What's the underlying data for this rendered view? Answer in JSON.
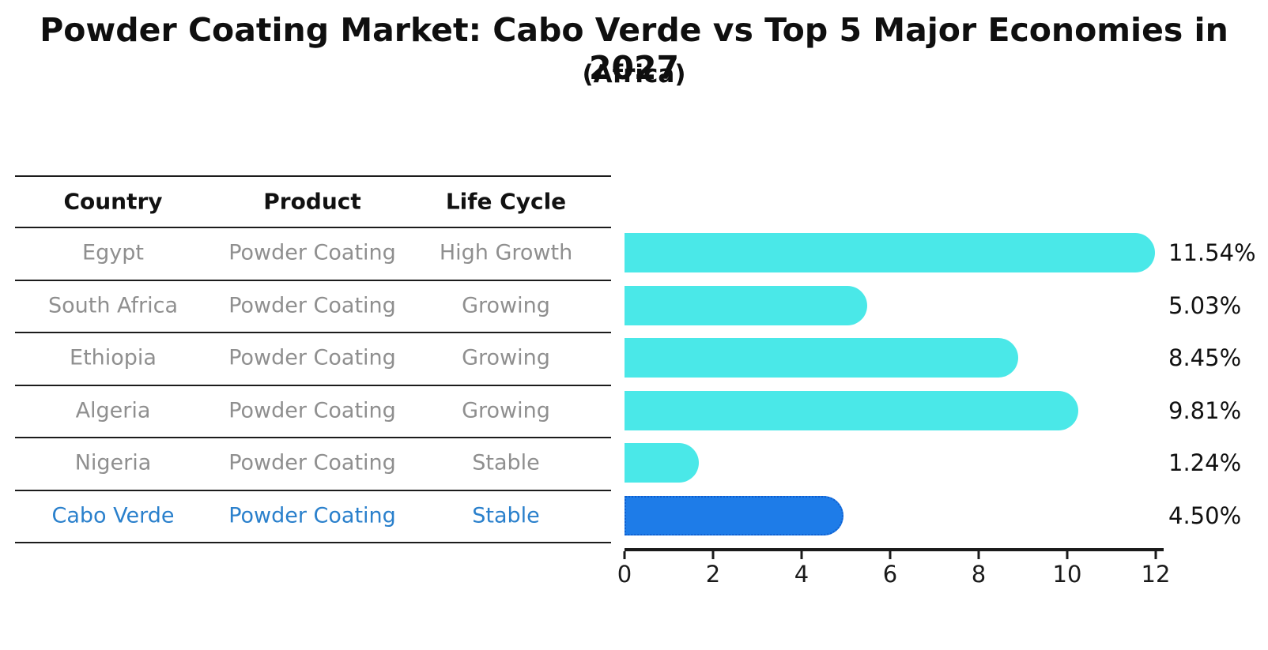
{
  "title": "Powder Coating Market: Cabo Verde vs Top 5 Major Economies in 2027",
  "subtitle": "(Africa)",
  "table": {
    "headers": [
      "Country",
      "Product",
      "Life Cycle"
    ],
    "rows": [
      {
        "country": "Egypt",
        "product": "Powder Coating",
        "life_cycle": "High Growth",
        "highlight": false
      },
      {
        "country": "South Africa",
        "product": "Powder Coating",
        "life_cycle": "Growing",
        "highlight": false
      },
      {
        "country": "Ethiopia",
        "product": "Powder Coating",
        "life_cycle": "Growing",
        "highlight": false
      },
      {
        "country": "Algeria",
        "product": "Powder Coating",
        "life_cycle": "Growing",
        "highlight": false
      },
      {
        "country": "Nigeria",
        "product": "Powder Coating",
        "life_cycle": "Stable",
        "highlight": false
      },
      {
        "country": "Cabo Verde",
        "product": "Powder Coating",
        "life_cycle": "Stable",
        "highlight": true
      }
    ]
  },
  "chart_data": {
    "type": "bar",
    "orientation": "horizontal",
    "categories": [
      "Egypt",
      "South Africa",
      "Ethiopia",
      "Algeria",
      "Nigeria",
      "Cabo Verde"
    ],
    "values": [
      11.54,
      5.03,
      8.45,
      9.81,
      1.24,
      4.5
    ],
    "value_labels": [
      "11.54%",
      "5.03%",
      "8.45%",
      "9.81%",
      "1.24%",
      "4.50%"
    ],
    "xlim": [
      0,
      12
    ],
    "xticks": [
      "0",
      "2",
      "4",
      "6",
      "8",
      "10",
      "12"
    ],
    "grid": false,
    "legend": "none",
    "bar_color": "#4ae8e8",
    "highlight_bar_color": "#1e7ce8",
    "highlight_border_color": "#0f5fd0",
    "highlight_index": 5,
    "highlight_text_color": "#2a80cc",
    "text_color_rows": "#8f8f8f"
  }
}
